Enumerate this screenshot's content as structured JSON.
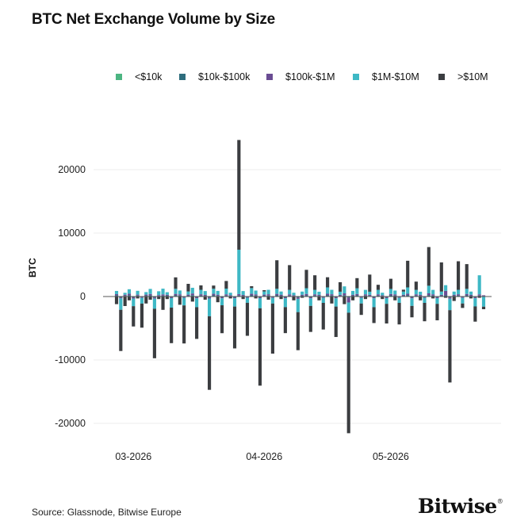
{
  "title": "BTC Net Exchange Volume by Size",
  "source": "Source: Glassnode, Bitwise Europe",
  "logo_text": "Bitwise",
  "logo_mark": "®",
  "chart_data": {
    "type": "bar",
    "stacked": true,
    "title": "BTC Net Exchange Volume by Size",
    "xlabel": "",
    "ylabel": "BTC",
    "ylim": [
      -21000,
      24500
    ],
    "yticks": [
      20000,
      10000,
      0,
      -10000,
      -20000
    ],
    "ytick_labels": [
      "20000",
      "10000",
      "0",
      "-10000",
      "-20000"
    ],
    "xtick_labels": [
      "03-2026",
      "04-2026",
      "05-2026"
    ],
    "xtick_dates": [
      "2026-03-01",
      "2026-04-01",
      "2026-05-01"
    ],
    "grid": "horizontal",
    "legend_position": "top",
    "categories": [
      "2026-02-25",
      "2026-02-26",
      "2026-02-27",
      "2026-02-28",
      "2026-03-01",
      "2026-03-02",
      "2026-03-03",
      "2026-03-04",
      "2026-03-05",
      "2026-03-06",
      "2026-03-07",
      "2026-03-08",
      "2026-03-09",
      "2026-03-10",
      "2026-03-11",
      "2026-03-12",
      "2026-03-13",
      "2026-03-14",
      "2026-03-15",
      "2026-03-16",
      "2026-03-17",
      "2026-03-18",
      "2026-03-19",
      "2026-03-20",
      "2026-03-21",
      "2026-03-22",
      "2026-03-23",
      "2026-03-24",
      "2026-03-25",
      "2026-03-26",
      "2026-03-27",
      "2026-03-28",
      "2026-03-29",
      "2026-03-30",
      "2026-03-31",
      "2026-04-01",
      "2026-04-02",
      "2026-04-03",
      "2026-04-04",
      "2026-04-05",
      "2026-04-06",
      "2026-04-07",
      "2026-04-08",
      "2026-04-09",
      "2026-04-10",
      "2026-04-11",
      "2026-04-12",
      "2026-04-13",
      "2026-04-14",
      "2026-04-15",
      "2026-04-16",
      "2026-04-17",
      "2026-04-18",
      "2026-04-19",
      "2026-04-20",
      "2026-04-21",
      "2026-04-22",
      "2026-04-23",
      "2026-04-24",
      "2026-04-25",
      "2026-04-26",
      "2026-04-27",
      "2026-04-28",
      "2026-04-29",
      "2026-04-30",
      "2026-05-01",
      "2026-05-02",
      "2026-05-03",
      "2026-05-04",
      "2026-05-05",
      "2026-05-06",
      "2026-05-07",
      "2026-05-08",
      "2026-05-09",
      "2026-05-10",
      "2026-05-11",
      "2026-05-12",
      "2026-05-13",
      "2026-05-14",
      "2026-05-15",
      "2026-05-16",
      "2026-05-17",
      "2026-05-18",
      "2026-05-19",
      "2026-05-20",
      "2026-05-21",
      "2026-05-22",
      "2026-05-23"
    ],
    "series": [
      {
        "name": "<$10k",
        "color": "#4cb582",
        "values": [
          60,
          -40,
          30,
          50,
          -30,
          40,
          -20,
          30,
          50,
          -40,
          20,
          40,
          30,
          -30,
          50,
          40,
          -20,
          30,
          60,
          -30,
          40,
          30,
          -40,
          50,
          30,
          -30,
          40,
          20,
          -30,
          40,
          30,
          -20,
          50,
          40,
          -30,
          30,
          40,
          -20,
          50,
          30,
          -30,
          40,
          20,
          -40,
          30,
          50,
          -30,
          40,
          30,
          -20,
          50,
          40,
          -30,
          30,
          60,
          -40,
          30,
          50,
          -20,
          40,
          30,
          -30,
          40,
          20,
          -30,
          50,
          40,
          -20,
          30,
          50,
          -30,
          40,
          30,
          -20,
          60,
          40,
          -30,
          30,
          50,
          -40,
          30,
          40,
          -20,
          50,
          30,
          -30,
          40,
          20
        ]
      },
      {
        "name": "$10k-$100k",
        "color": "#2e6d7d",
        "values": [
          120,
          -100,
          80,
          150,
          -90,
          110,
          -70,
          90,
          130,
          -110,
          60,
          100,
          90,
          -80,
          140,
          110,
          -60,
          90,
          160,
          -90,
          120,
          80,
          -100,
          140,
          80,
          -90,
          110,
          60,
          -90,
          120,
          80,
          -60,
          140,
          110,
          -80,
          90,
          120,
          -60,
          140,
          90,
          -90,
          110,
          60,
          -120,
          90,
          130,
          -90,
          110,
          80,
          -60,
          140,
          120,
          -90,
          80,
          160,
          -110,
          90,
          130,
          -60,
          110,
          80,
          -90,
          110,
          60,
          -80,
          130,
          110,
          -60,
          90,
          140,
          -90,
          110,
          80,
          -60,
          160,
          110,
          -80,
          90,
          140,
          -110,
          90,
          120,
          -60,
          130,
          90,
          -80,
          110,
          60
        ]
      },
      {
        "name": "$100k-$1M",
        "color": "#6a4c93",
        "values": [
          200,
          -150,
          180,
          250,
          -200,
          150,
          -120,
          180,
          220,
          -180,
          150,
          200,
          160,
          -140,
          230,
          200,
          -120,
          180,
          260,
          -160,
          200,
          150,
          -170,
          240,
          180,
          -160,
          200,
          120,
          -160,
          220,
          150,
          -110,
          240,
          190,
          -140,
          180,
          200,
          -120,
          230,
          170,
          -150,
          200,
          120,
          -200,
          160,
          230,
          -160,
          200,
          150,
          -120,
          250,
          200,
          -160,
          150,
          280,
          -800,
          160,
          220,
          -120,
          200,
          150,
          -160,
          200,
          120,
          -140,
          220,
          190,
          -120,
          160,
          250,
          -160,
          200,
          150,
          -120,
          280,
          200,
          -140,
          160,
          700,
          -200,
          160,
          200,
          -120,
          230,
          160,
          -150,
          200,
          120
        ]
      },
      {
        "name": "$1M-$10M",
        "color": "#3eb8c5",
        "values": [
          500,
          -1800,
          300,
          700,
          -1200,
          600,
          -900,
          400,
          800,
          -1600,
          600,
          900,
          400,
          -1500,
          800,
          600,
          -1200,
          500,
          900,
          -1400,
          700,
          600,
          -2800,
          800,
          600,
          -1100,
          900,
          400,
          -1300,
          7000,
          600,
          -800,
          900,
          600,
          -1600,
          500,
          700,
          -900,
          800,
          500,
          -1400,
          700,
          400,
          -2100,
          500,
          900,
          -1200,
          700,
          500,
          -800,
          1000,
          700,
          -1300,
          500,
          1100,
          -1600,
          600,
          900,
          -900,
          700,
          500,
          -1400,
          700,
          400,
          -900,
          800,
          600,
          -800,
          500,
          1000,
          -1200,
          700,
          500,
          -800,
          1200,
          700,
          -900,
          500,
          900,
          -1800,
          500,
          700,
          -900,
          800,
          500,
          -1300,
          3000,
          -1600
        ]
      },
      {
        "name": ">$10M",
        "color": "#3b3d40",
        "values": [
          -1200,
          -6500,
          -1500,
          -600,
          -3200,
          -300,
          -3800,
          -1100,
          -500,
          -7800,
          -400,
          -2100,
          -400,
          -5600,
          1800,
          -1300,
          -6000,
          1200,
          -800,
          -5000,
          700,
          -500,
          -11600,
          500,
          -900,
          -4400,
          1200,
          -300,
          -6600,
          17300,
          -400,
          -5200,
          300,
          -300,
          -12200,
          200,
          -500,
          -7900,
          4500,
          -400,
          -4100,
          3900,
          -600,
          -6000,
          -200,
          2900,
          -4100,
          2300,
          -600,
          -4200,
          1600,
          -1100,
          -4800,
          1500,
          -1200,
          -19000,
          -600,
          1600,
          -1800,
          -400,
          2700,
          -2500,
          800,
          -400,
          -3100,
          1600,
          -600,
          -3400,
          300,
          4200,
          -1800,
          1300,
          -600,
          -2900,
          6100,
          -300,
          -2600,
          4600,
          -200,
          -11400,
          -700,
          4500,
          -700,
          3900,
          -300,
          -2400,
          -200,
          -400
        ]
      }
    ]
  }
}
